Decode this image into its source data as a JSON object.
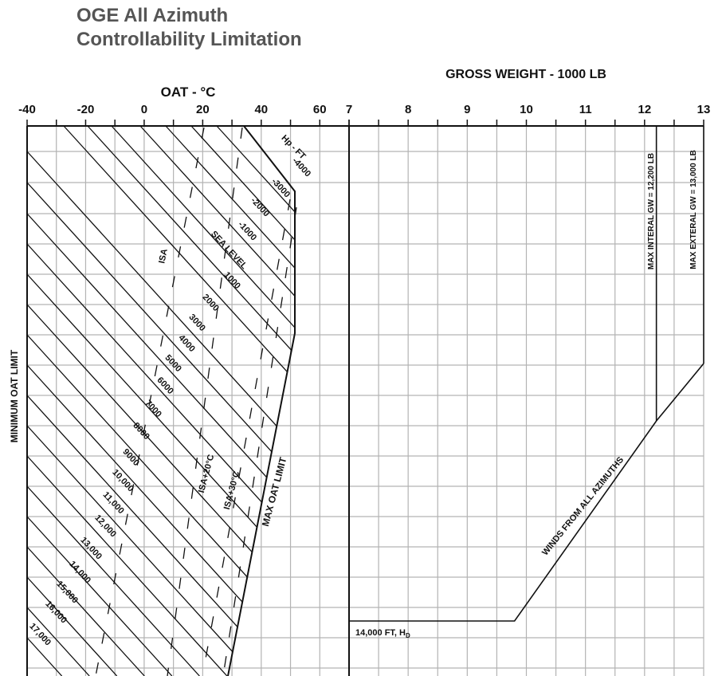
{
  "title_lines": [
    "OGE All Azimuth",
    "Controllability Limitation"
  ],
  "chart_data": [
    {
      "type": "line",
      "title": "OGE All Azimuth Controllability Limitation",
      "panel": "left",
      "xlabel": "OAT - °C",
      "ylabel": "",
      "xlim": [
        -40,
        70
      ],
      "xticks": [
        -40,
        -20,
        0,
        20,
        40,
        60
      ],
      "x_minor_step": 10,
      "grid": true,
      "pressure_altitude_label": "Hp - FT",
      "pressure_altitude_lines": [
        "-4000",
        "-3000",
        "-2000",
        "-1000",
        "SEA LEVEL",
        "1000",
        "2000",
        "3000",
        "4000",
        "5000",
        "6000",
        "7000",
        "8000",
        "9000",
        "10,000",
        "11,000",
        "12,000",
        "13,000",
        "14,000",
        "15,000",
        "16,000",
        "17,000"
      ],
      "isa_lines": [
        "ISA",
        "ISA+20°C",
        "ISA+30°C"
      ],
      "limit_labels": {
        "min_oat": "MINIMUM OAT LIMIT",
        "max_oat": "MAX OAT LIMIT"
      }
    },
    {
      "type": "line",
      "panel": "right",
      "xlabel": "GROSS WEIGHT - 1000 LB",
      "xlim": [
        7,
        13
      ],
      "xticks": [
        7,
        8,
        9,
        10,
        11,
        12,
        13
      ],
      "x_minor_step": 0.5,
      "grid": true,
      "series": [
        {
          "name": "WINDS FROM ALL AZIMUTHS",
          "x": [
            7,
            9.8,
            12.2,
            13
          ],
          "y": [
            "14,000 FT, H",
            "14,000 FT, H",
            "",
            ""
          ]
        }
      ],
      "annotations": {
        "density_altitude_label": "14,000 FT, H",
        "density_altitude_subscript": "D",
        "winds_label": "WINDS FROM ALL AZIMUTHS",
        "max_internal": "MAX INTERAL GW = 12,200 LB",
        "max_external": "MAX EXTERAL GW = 13,000 LB"
      },
      "limits": {
        "max_internal_gw": 12.2,
        "max_external_gw": 13.0
      }
    }
  ]
}
